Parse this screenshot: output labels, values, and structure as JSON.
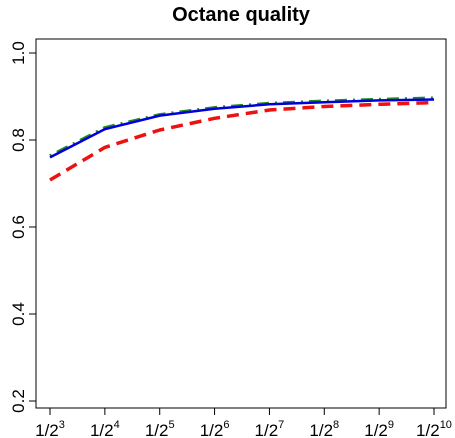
{
  "chart_data": {
    "type": "line",
    "title": "Octane quality",
    "xlabel": "",
    "ylabel": "",
    "x": [
      3,
      4,
      5,
      6,
      7,
      8,
      9,
      10
    ],
    "x_tick_labels": [
      {
        "base": "1/2",
        "exp": "3"
      },
      {
        "base": "1/2",
        "exp": "4"
      },
      {
        "base": "1/2",
        "exp": "5"
      },
      {
        "base": "1/2",
        "exp": "6"
      },
      {
        "base": "1/2",
        "exp": "7"
      },
      {
        "base": "1/2",
        "exp": "8"
      },
      {
        "base": "1/2",
        "exp": "9"
      },
      {
        "base": "1/2",
        "exp": "10"
      }
    ],
    "y_ticks": [
      0.2,
      0.4,
      0.6,
      0.8,
      1.0
    ],
    "y_tick_labels": [
      "0.2",
      "0.4",
      "0.6",
      "0.8",
      "1.0"
    ],
    "ylim": [
      0.2,
      1.0
    ],
    "xlim": [
      3,
      10
    ],
    "grid": false,
    "series": [
      {
        "color": "#0000dd",
        "style": "solid",
        "values": [
          0.76,
          0.825,
          0.856,
          0.872,
          0.882,
          0.887,
          0.891,
          0.893
        ]
      },
      {
        "color": "#228b22",
        "style": "dotdash",
        "values": [
          0.763,
          0.828,
          0.858,
          0.874,
          0.884,
          0.889,
          0.893,
          0.896
        ]
      },
      {
        "color": "#ee1111",
        "style": "dashed",
        "values": [
          0.708,
          0.783,
          0.823,
          0.85,
          0.869,
          0.877,
          0.882,
          0.886
        ]
      }
    ]
  }
}
